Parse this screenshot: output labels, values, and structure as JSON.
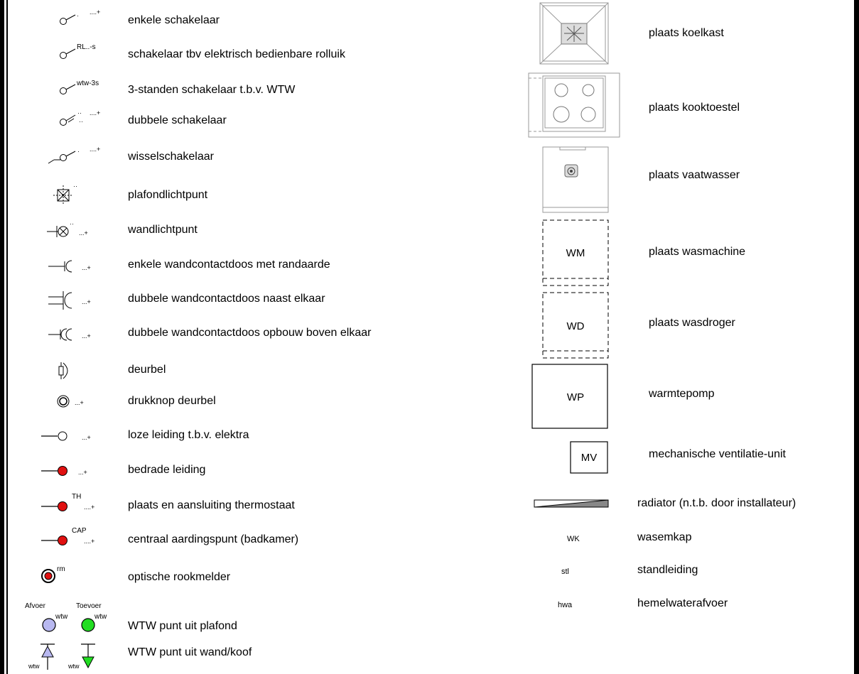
{
  "left_legend": [
    {
      "label": "enkele schakelaar",
      "sup": "....+",
      "sup2": ""
    },
    {
      "label": "schakelaar tbv elektrisch bedienbare rolluik",
      "sup": "RL..-s",
      "sup2": ""
    },
    {
      "label": "3-standen schakelaar t.b.v. WTW",
      "sup": "wtw-3s",
      "sup2": ""
    },
    {
      "label": "dubbele schakelaar",
      "sup": "....+",
      "sup2": ""
    },
    {
      "label": "wisselschakelaar",
      "sup": "....+",
      "sup2": ""
    },
    {
      "label": "plafondlichtpunt",
      "sup": "",
      "sup2": ""
    },
    {
      "label": "wandlichtpunt",
      "sup": "...+",
      "sup2": ""
    },
    {
      "label": "enkele wandcontactdoos met randaarde",
      "sup": "...+",
      "sup2": ""
    },
    {
      "label": "dubbele wandcontactdoos naast elkaar",
      "sup": "...+",
      "sup2": ""
    },
    {
      "label": "dubbele wandcontactdoos opbouw boven elkaar",
      "sup": "...+",
      "sup2": ""
    },
    {
      "label": "deurbel",
      "sup": "",
      "sup2": ""
    },
    {
      "label": "drukknop deurbel",
      "sup": "...+",
      "sup2": ""
    },
    {
      "label": "loze leiding t.b.v. elektra",
      "sup": "...+",
      "sup2": ""
    },
    {
      "label": "bedrade leiding",
      "sup": "...+",
      "sup2": ""
    },
    {
      "label": "plaats en aansluiting thermostaat",
      "sup": "TH",
      "sup2": "....+"
    },
    {
      "label": "centraal aardingspunt (badkamer)",
      "sup": "CAP",
      "sup2": "....+"
    },
    {
      "label": "optische rookmelder",
      "sup": "rm",
      "sup2": ""
    },
    {
      "label": "WTW punt uit plafond",
      "sup": "",
      "sup2": ""
    },
    {
      "label": "WTW punt uit wand/koof",
      "sup": "",
      "sup2": ""
    }
  ],
  "wtw": {
    "afvoer": "Afvoer",
    "toevoer": "Toevoer",
    "wtw_tag": "wtw"
  },
  "right_legend": [
    {
      "label": "plaats koelkast",
      "code": ""
    },
    {
      "label": "plaats kooktoestel",
      "code": ""
    },
    {
      "label": "plaats vaatwasser",
      "code": ""
    },
    {
      "label": "plaats wasmachine",
      "code": "WM"
    },
    {
      "label": "plaats wasdroger",
      "code": "WD"
    },
    {
      "label": "warmtepomp",
      "code": "WP"
    },
    {
      "label": "mechanische ventilatie-unit",
      "code": "MV"
    },
    {
      "label": "radiator (n.t.b. door installateur)",
      "code": ""
    },
    {
      "label": "wasemkap",
      "code": "WK"
    },
    {
      "label": "standleiding",
      "code": "stl"
    },
    {
      "label": "hemelwaterafvoer",
      "code": "hwa"
    }
  ],
  "colors": {
    "red_dot": "#e01010",
    "wtw_afvoer": "#b8b8f0",
    "wtw_toevoer": "#22dd22",
    "appliance_line": "#999999"
  }
}
